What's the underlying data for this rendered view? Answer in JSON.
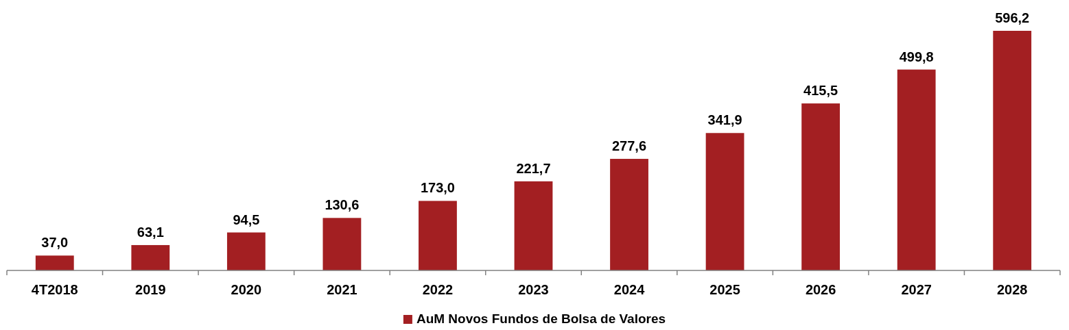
{
  "chart_data": {
    "type": "bar",
    "categories": [
      "4T2018",
      "2019",
      "2020",
      "2021",
      "2022",
      "2023",
      "2024",
      "2025",
      "2026",
      "2027",
      "2028"
    ],
    "series": [
      {
        "name": "AuM Novos Fundos de Bolsa de Valores",
        "color": "#a31f22",
        "values": [
          37.0,
          63.1,
          94.5,
          130.6,
          173.0,
          221.7,
          277.6,
          341.9,
          415.5,
          499.8,
          596.2
        ],
        "value_labels": [
          "37,0",
          "63,1",
          "94,5",
          "130,6",
          "173,0",
          "221,7",
          "277,6",
          "341,9",
          "415,5",
          "499,8",
          "596,2"
        ]
      }
    ],
    "legend": "bottom",
    "grid": false
  }
}
